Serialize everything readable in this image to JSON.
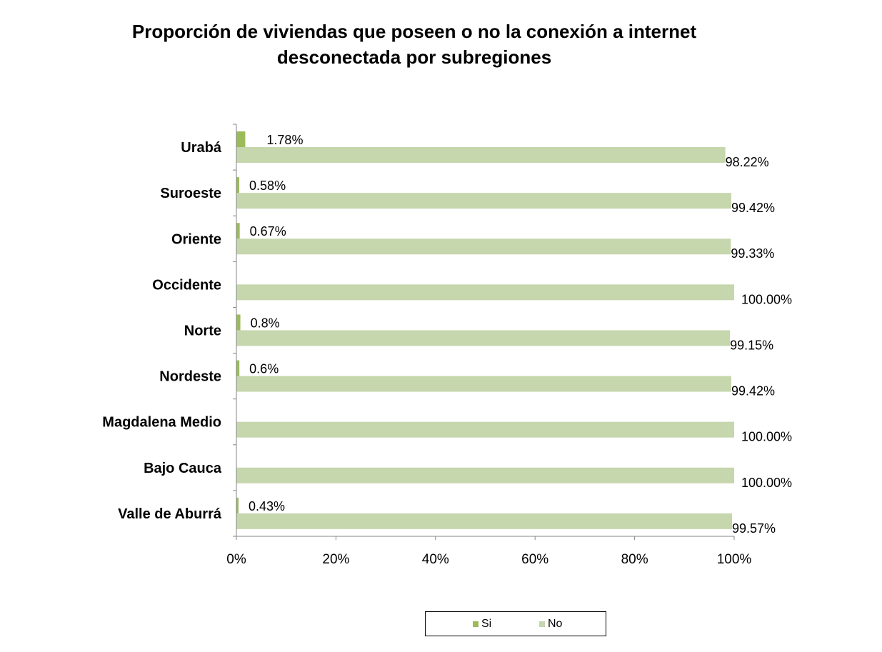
{
  "chart_data": {
    "type": "bar",
    "orientation": "horizontal",
    "title": "Proporción de viviendas que poseen o no la conexión a internet desconectada por subregiones",
    "title_lines": [
      "Proporción de viviendas que poseen o no la conexión a internet",
      "desconectada por subregiones"
    ],
    "categories": [
      "Urabá",
      "Suroeste",
      "Oriente",
      "Occidente",
      "Norte",
      "Nordeste",
      "Magdalena Medio",
      "Bajo Cauca",
      "Valle de Aburrá"
    ],
    "series": [
      {
        "name": "Si",
        "color": "#9bbb59",
        "values": [
          1.78,
          0.58,
          0.67,
          0,
          0.8,
          0.6,
          0,
          0,
          0.43
        ],
        "labels": [
          "1.78%",
          "0.58%",
          "0.67%",
          "",
          "0.8%",
          "0.6%",
          "",
          "",
          "0.43%"
        ]
      },
      {
        "name": "No",
        "color": "#c6d6ad",
        "values": [
          98.22,
          99.42,
          99.33,
          100,
          99.15,
          99.42,
          100,
          100,
          99.57
        ],
        "labels": [
          "98.22%",
          "99.42%",
          "99.33%",
          "100.00%",
          "99.15%",
          "99.42%",
          "100.00%",
          "100.00%",
          "99.57%"
        ]
      }
    ],
    "xlim": [
      0,
      100
    ],
    "xticks": [
      "0%",
      "20%",
      "40%",
      "60%",
      "80%",
      "100%"
    ],
    "xlabel": "",
    "ylabel": "",
    "grid": false,
    "legend_position": "bottom"
  }
}
